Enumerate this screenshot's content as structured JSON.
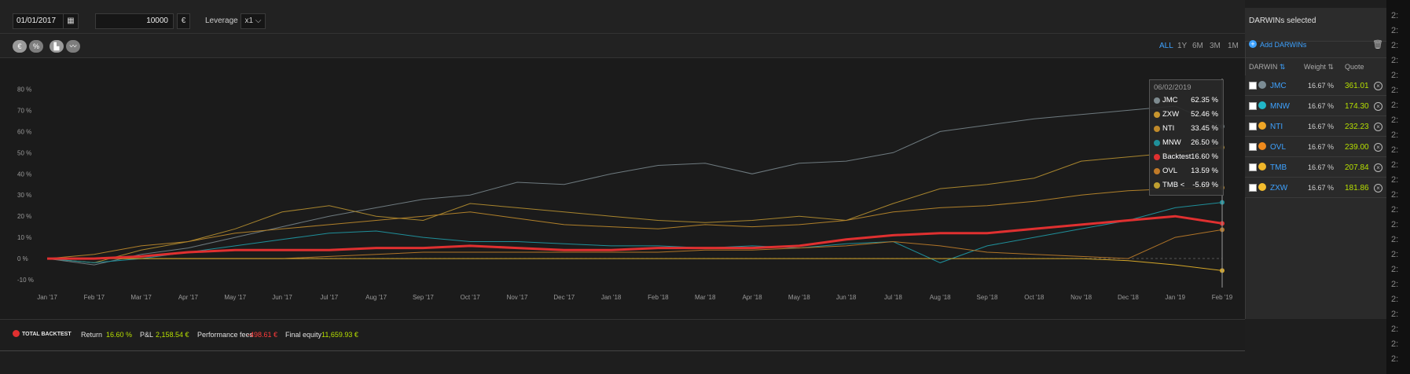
{
  "top": {
    "date": "01/01/2017",
    "amount": "10000",
    "currency": "€",
    "leverage_label": "Leverage",
    "leverage_value": "x1"
  },
  "toolbar": {
    "mode_euro": "€",
    "mode_pct": "%",
    "ranges": [
      "ALL",
      "1Y",
      "6M",
      "3M",
      "1M"
    ]
  },
  "sidebar": {
    "title": "DARWINs selected",
    "add_label": "Add DARWINs",
    "columns": {
      "darwin": "DARWIN",
      "weight": "Weight",
      "quote": "Quote"
    },
    "rows": [
      {
        "name": "JMC",
        "weight": "16.67 %",
        "quote": "361.01",
        "color": "#7c8c94"
      },
      {
        "name": "MNW",
        "weight": "16.67 %",
        "quote": "174.30",
        "color": "#21b6c7"
      },
      {
        "name": "NTI",
        "weight": "16.67 %",
        "quote": "232.23",
        "color": "#f0a626"
      },
      {
        "name": "OVL",
        "weight": "16.67 %",
        "quote": "239.00",
        "color": "#f08a1c"
      },
      {
        "name": "TMB",
        "weight": "16.67 %",
        "quote": "207.84",
        "color": "#f0b62a"
      },
      {
        "name": "ZXW",
        "weight": "16.67 %",
        "quote": "181.86",
        "color": "#f4bd2e"
      }
    ]
  },
  "tooltip": {
    "date": "06/02/2019",
    "items": [
      {
        "name": "JMC",
        "value": "62.35 %",
        "color": "#7d8a8f"
      },
      {
        "name": "ZXW",
        "value": "52.46 %",
        "color": "#c8962e"
      },
      {
        "name": "NTI",
        "value": "33.45 %",
        "color": "#c08a2a"
      },
      {
        "name": "MNW",
        "value": "26.50 %",
        "color": "#1f8f9a"
      },
      {
        "name": "Backtest",
        "value": "16.60 %",
        "color": "#e03030"
      },
      {
        "name": "OVL",
        "value": "13.59 %",
        "color": "#c07a28"
      },
      {
        "name": "TMB <",
        "value": "-5.69 %",
        "color": "#c0a030"
      }
    ]
  },
  "bottom": {
    "total_label": "TOTAL BACKTEST",
    "return_label": "Return",
    "return_value": "16.60 %",
    "pnl_label": "P&L",
    "pnl_value": "2,158.54 €",
    "fees_label": "Performance fees",
    "fees_value": "-498.61 €",
    "equity_label": "Final equity",
    "equity_value": "11,659.93 €"
  },
  "right_edge": [
    "2:",
    "2:",
    "2:",
    "2:",
    "2:",
    "2:",
    "2:",
    "2:",
    "2:",
    "2:",
    "2:",
    "2:",
    "2:",
    "2:",
    "2:",
    "2:",
    "2:",
    "2:",
    "2:",
    "2:",
    "2:",
    "2:",
    "2:",
    "2:"
  ],
  "chart_data": {
    "type": "line",
    "x": [
      "Jan '17",
      "Feb '17",
      "Mar '17",
      "Apr '17",
      "May '17",
      "Jun '17",
      "Jul '17",
      "Aug '17",
      "Sep '17",
      "Oct '17",
      "Nov '17",
      "Dec '17",
      "Jan '18",
      "Feb '18",
      "Mar '18",
      "Apr '18",
      "May '18",
      "Jun '18",
      "Jul '18",
      "Aug '18",
      "Sep '18",
      "Oct '18",
      "Nov '18",
      "Dec '18",
      "Jan '19",
      "Feb '19"
    ],
    "y_ticks": [
      80,
      70,
      60,
      50,
      40,
      30,
      20,
      10,
      0,
      -10
    ],
    "ylim": [
      -10,
      85
    ],
    "series": [
      {
        "name": "JMC",
        "color": "#6e7a7f",
        "values": [
          0,
          -3,
          2,
          5,
          10,
          15,
          20,
          24,
          28,
          30,
          36,
          35,
          40,
          44,
          45,
          40,
          45,
          46,
          50,
          60,
          63,
          66,
          68,
          70,
          72,
          62.35
        ]
      },
      {
        "name": "ZXW",
        "color": "#a8852e",
        "values": [
          0,
          -2,
          4,
          8,
          14,
          22,
          25,
          20,
          18,
          26,
          24,
          22,
          20,
          18,
          17,
          18,
          20,
          18,
          26,
          33,
          35,
          38,
          46,
          48,
          50,
          52.46
        ]
      },
      {
        "name": "NTI",
        "color": "#b0802a",
        "values": [
          0,
          2,
          6,
          8,
          12,
          14,
          16,
          18,
          20,
          22,
          19,
          16,
          15,
          14,
          16,
          15,
          16,
          18,
          22,
          24,
          25,
          27,
          30,
          32,
          33,
          33.45
        ]
      },
      {
        "name": "MNW",
        "color": "#1f8f9a",
        "values": [
          0,
          -2,
          0,
          3,
          6,
          9,
          12,
          13,
          10,
          8,
          8,
          7,
          6,
          6,
          5,
          6,
          5,
          7,
          8,
          -2,
          6,
          10,
          14,
          18,
          24,
          26.5
        ]
      },
      {
        "name": "Backtest",
        "color": "#e03030",
        "values": [
          0,
          0,
          1,
          3,
          4,
          4,
          4,
          5,
          5,
          6,
          5,
          4,
          4,
          5,
          5,
          5,
          6,
          9,
          11,
          12,
          12,
          14,
          16,
          18,
          20,
          16.6
        ]
      },
      {
        "name": "OVL",
        "color": "#b07428",
        "values": [
          0,
          0,
          0,
          0,
          0,
          0,
          1,
          2,
          3,
          3,
          3,
          3,
          3,
          3,
          4,
          4,
          5,
          6,
          8,
          6,
          3,
          2,
          1,
          0,
          10,
          13.59
        ]
      },
      {
        "name": "TMB",
        "color": "#d4a628",
        "values": [
          0,
          0,
          0,
          0,
          0,
          0,
          0,
          0,
          0,
          0,
          0,
          0,
          0,
          0,
          0,
          0,
          0,
          0,
          0,
          0,
          0,
          0,
          0,
          -1,
          -3,
          -5.69
        ]
      }
    ]
  }
}
